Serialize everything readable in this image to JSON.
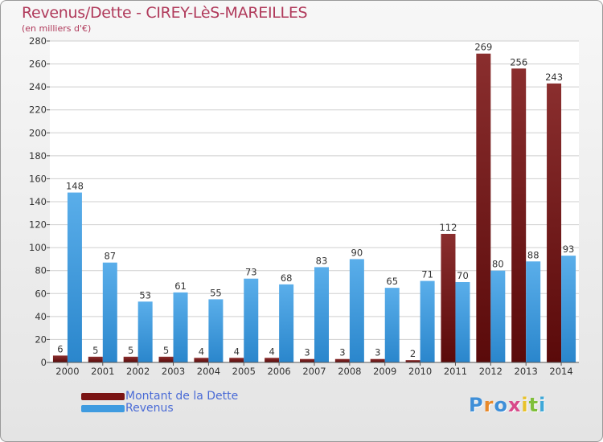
{
  "header": {
    "title": "Revenus/Dette - CIREY-LèS-MAREILLES",
    "subtitle": "(en milliers d'€)"
  },
  "legend": {
    "items": [
      {
        "label": "Montant de la Dette",
        "color": "#7a1414"
      },
      {
        "label": "Revenus",
        "color": "#3f9be0"
      }
    ]
  },
  "logo": {
    "text": "Proxiti"
  },
  "colors": {
    "debt": "#7a1414",
    "revenue": "#3f9be0",
    "title": "#b03a5b"
  },
  "chart_data": {
    "type": "bar",
    "title": "Revenus/Dette - CIREY-LèS-MAREILLES",
    "subtitle": "(en milliers d'€)",
    "categories": [
      "2000",
      "2001",
      "2002",
      "2003",
      "2004",
      "2005",
      "2006",
      "2007",
      "2008",
      "2009",
      "2010",
      "2011",
      "2012",
      "2013",
      "2014"
    ],
    "series": [
      {
        "name": "Montant de la Dette",
        "color": "#7a1414",
        "values": [
          6,
          5,
          5,
          5,
          4,
          4,
          4,
          3,
          3,
          3,
          2,
          112,
          269,
          256,
          243
        ]
      },
      {
        "name": "Revenus",
        "color": "#3f9be0",
        "values": [
          148,
          87,
          53,
          61,
          55,
          73,
          68,
          83,
          90,
          65,
          71,
          70,
          80,
          88,
          93
        ]
      }
    ],
    "ylim": [
      0,
      280
    ],
    "yticks": [
      0,
      20,
      40,
      60,
      80,
      100,
      120,
      140,
      160,
      180,
      200,
      220,
      240,
      260,
      280
    ],
    "grid": true,
    "legend_position": "bottom-left"
  }
}
